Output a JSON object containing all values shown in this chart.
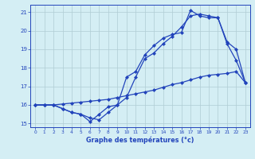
{
  "xlabel": "Graphe des températures (°c)",
  "hours": [
    0,
    1,
    2,
    3,
    4,
    5,
    6,
    7,
    8,
    9,
    10,
    11,
    12,
    13,
    14,
    15,
    16,
    17,
    18,
    19,
    20,
    21,
    22,
    23
  ],
  "line1": [
    16.0,
    16.0,
    16.0,
    15.8,
    15.6,
    15.5,
    15.1,
    15.5,
    15.9,
    16.0,
    17.5,
    17.8,
    18.7,
    19.2,
    19.6,
    19.8,
    19.9,
    21.1,
    20.8,
    20.7,
    20.7,
    19.3,
    18.4,
    17.2
  ],
  "line2": [
    16.0,
    16.0,
    16.0,
    15.8,
    15.6,
    15.5,
    15.3,
    15.2,
    15.6,
    16.0,
    16.4,
    17.5,
    18.5,
    18.8,
    19.3,
    19.7,
    20.2,
    20.8,
    20.9,
    20.8,
    20.7,
    19.4,
    19.0,
    17.2
  ],
  "line3": [
    16.0,
    16.0,
    16.0,
    16.05,
    16.1,
    16.15,
    16.2,
    16.25,
    16.3,
    16.4,
    16.5,
    16.6,
    16.7,
    16.8,
    16.95,
    17.1,
    17.2,
    17.35,
    17.5,
    17.6,
    17.65,
    17.7,
    17.8,
    17.2
  ],
  "line_color": "#2244bb",
  "bg_color": "#d4eef4",
  "grid_color": "#b0ccd4",
  "xlim": [
    -0.5,
    23.5
  ],
  "ylim": [
    14.8,
    21.4
  ],
  "yticks": [
    15,
    16,
    17,
    18,
    19,
    20,
    21
  ],
  "xticks": [
    0,
    1,
    2,
    3,
    4,
    5,
    6,
    7,
    8,
    9,
    10,
    11,
    12,
    13,
    14,
    15,
    16,
    17,
    18,
    19,
    20,
    21,
    22,
    23
  ],
  "marker": "D",
  "marker_size": 2.0,
  "linewidth": 0.9
}
